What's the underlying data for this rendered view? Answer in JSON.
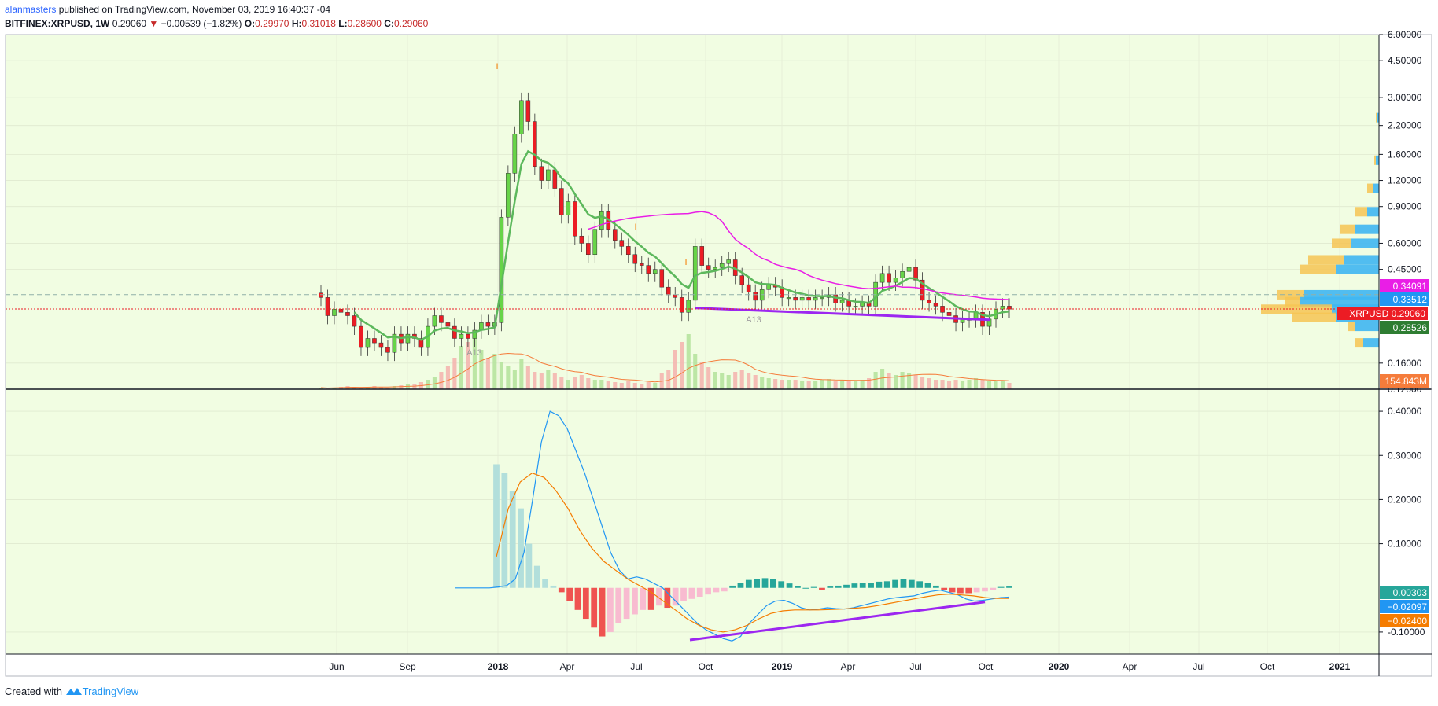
{
  "header": {
    "author": "alanmasters",
    "published": "published on TradingView.com, November 03, 2019 16:40:37 -04",
    "symbol": "BITFINEX:XRPUSD, 1W",
    "last": "0.29060",
    "change_arrow": "▼",
    "change": "−0.00539 (−1.82%)",
    "o_label": "O:",
    "o_value": "0.29970",
    "h_label": "H:",
    "h_value": "0.31018",
    "l_label": "L:",
    "l_value": "0.28600",
    "c_label": "C:",
    "c_value": "0.29060"
  },
  "footer": {
    "created_with": "Created with",
    "brand": "TradingView",
    "brand_icon": "tradingview-logo-icon"
  },
  "colors": {
    "background": "#f1fde2",
    "up": "#67d448",
    "down": "#ec1c24",
    "ema_green": "#5cb85c",
    "ma_magenta": "#e91ee6",
    "trendline": "#9c27f0",
    "macd": "#2196f3",
    "signal": "#f57c00",
    "hist_pos": "#26a69a",
    "hist_neg": "#ef5350"
  },
  "chart_data": [
    {
      "type": "candlestick",
      "title": "BITFINEX:XRPUSD, 1W",
      "scale": "log",
      "ylim": [
        0.12,
        6.0
      ],
      "y_ticks": [
        "6.00000",
        "4.50000",
        "3.00000",
        "2.20000",
        "1.60000",
        "1.20000",
        "0.90000",
        "0.60000",
        "0.45000",
        "0.16000",
        "0.12000"
      ],
      "x_ticks": [
        "Jun",
        "Sep",
        "2018",
        "Apr",
        "Jul",
        "Oct",
        "2019",
        "Apr",
        "Jul",
        "Oct",
        "2020",
        "Apr",
        "Jul",
        "Oct",
        "2021"
      ],
      "bold_x_ticks": [
        "2018",
        "2019",
        "2020",
        "2021"
      ],
      "price_labels": [
        {
          "text": "0.34091",
          "color": "#e91ee6"
        },
        {
          "text": "0.33512",
          "color": "#2196f3"
        },
        {
          "text": "XRPUSD  0.29060",
          "color": "#ec1c24"
        },
        {
          "text": "0.28526",
          "color": "#2e7d32"
        },
        {
          "text": "154.843M",
          "color": "#f57c3b"
        }
      ],
      "annotations": [
        "I",
        "I",
        "I",
        "A13",
        "A13"
      ],
      "close_series": [
        0.33,
        0.27,
        0.29,
        0.28,
        0.27,
        0.24,
        0.19,
        0.21,
        0.2,
        0.19,
        0.18,
        0.22,
        0.2,
        0.22,
        0.21,
        0.19,
        0.24,
        0.27,
        0.25,
        0.24,
        0.21,
        0.22,
        0.21,
        0.23,
        0.25,
        0.24,
        0.25,
        0.8,
        1.3,
        2.0,
        2.9,
        2.3,
        1.4,
        1.2,
        1.35,
        1.1,
        0.82,
        0.95,
        0.65,
        0.6,
        0.53,
        0.7,
        0.85,
        0.7,
        0.62,
        0.58,
        0.53,
        0.48,
        0.47,
        0.43,
        0.45,
        0.37,
        0.34,
        0.33,
        0.28,
        0.32,
        0.58,
        0.47,
        0.45,
        0.46,
        0.48,
        0.5,
        0.42,
        0.38,
        0.35,
        0.32,
        0.36,
        0.38,
        0.37,
        0.33,
        0.33,
        0.32,
        0.33,
        0.32,
        0.33,
        0.33,
        0.34,
        0.31,
        0.32,
        0.3,
        0.3,
        0.31,
        0.3,
        0.39,
        0.43,
        0.39,
        0.41,
        0.44,
        0.46,
        0.4,
        0.32,
        0.31,
        0.3,
        0.28,
        0.27,
        0.25,
        0.26,
        0.26,
        0.28,
        0.24,
        0.26,
        0.29,
        0.3,
        0.29
      ],
      "volume": [
        2,
        1,
        2,
        3,
        4,
        3,
        2,
        3,
        4,
        3,
        2,
        4,
        5,
        6,
        7,
        9,
        12,
        16,
        22,
        30,
        40,
        55,
        60,
        70,
        50,
        40,
        45,
        35,
        30,
        25,
        38,
        30,
        22,
        20,
        25,
        20,
        15,
        12,
        15,
        18,
        14,
        12,
        12,
        10,
        9,
        8,
        10,
        8,
        7,
        9,
        8,
        20,
        24,
        50,
        60,
        70,
        45,
        35,
        28,
        22,
        20,
        18,
        22,
        25,
        20,
        18,
        15,
        14,
        13,
        12,
        12,
        12,
        11,
        10,
        11,
        12,
        13,
        11,
        12,
        10,
        10,
        12,
        14,
        22,
        26,
        20,
        18,
        22,
        20,
        18,
        15,
        14,
        12,
        12,
        10,
        12,
        10,
        12,
        14,
        12,
        10,
        10,
        10,
        8
      ]
    },
    {
      "type": "macd",
      "y_ticks": [
        "0.40000",
        "0.30000",
        "0.20000",
        "0.10000",
        "-0.10000"
      ],
      "ylim": [
        -0.15,
        0.45
      ],
      "last_values": {
        "histogram": "0.00303",
        "macd": "−0.02097",
        "signal": "−0.02400"
      },
      "macd": [
        0,
        0,
        0,
        0,
        0,
        0.002,
        0.005,
        0.02,
        0.08,
        0.2,
        0.33,
        0.4,
        0.39,
        0.36,
        0.31,
        0.26,
        0.2,
        0.14,
        0.08,
        0.04,
        0.02,
        0.025,
        0.02,
        0.01,
        0,
        -0.02,
        -0.04,
        -0.06,
        -0.08,
        -0.095,
        -0.105,
        -0.115,
        -0.12,
        -0.11,
        -0.08,
        -0.06,
        -0.04,
        -0.03,
        -0.028,
        -0.035,
        -0.045,
        -0.05,
        -0.048,
        -0.045,
        -0.047,
        -0.048,
        -0.045,
        -0.04,
        -0.035,
        -0.03,
        -0.025,
        -0.022,
        -0.02,
        -0.018,
        -0.012,
        -0.008,
        -0.005,
        -0.01,
        -0.015,
        -0.025,
        -0.03,
        -0.028,
        -0.025,
        -0.022,
        -0.021
      ],
      "signal": [
        0.07,
        0.18,
        0.24,
        0.26,
        0.25,
        0.22,
        0.18,
        0.13,
        0.09,
        0.06,
        0.04,
        0.02,
        0.005,
        -0.01,
        -0.03,
        -0.05,
        -0.07,
        -0.085,
        -0.095,
        -0.1,
        -0.095,
        -0.085,
        -0.07,
        -0.058,
        -0.052,
        -0.05,
        -0.05,
        -0.05,
        -0.049,
        -0.048,
        -0.046,
        -0.044,
        -0.04,
        -0.035,
        -0.03,
        -0.025,
        -0.02,
        -0.016,
        -0.014,
        -0.016,
        -0.018,
        -0.022,
        -0.024,
        -0.024
      ],
      "histogram": [
        0.28,
        0.26,
        0.22,
        0.18,
        0.1,
        0.05,
        0.02,
        0.005,
        -0.01,
        -0.03,
        -0.05,
        -0.07,
        -0.09,
        -0.11,
        -0.1,
        -0.08,
        -0.07,
        -0.06,
        -0.05,
        -0.05,
        -0.04,
        -0.045,
        -0.04,
        -0.03,
        -0.025,
        -0.02,
        -0.015,
        -0.01,
        -0.008,
        0.005,
        0.012,
        0.018,
        0.02,
        0.022,
        0.02,
        0.015,
        0.01,
        0.004,
        0,
        0.002,
        -0.004,
        0.003,
        0.005,
        0.007,
        0.01,
        0.012,
        0.012,
        0.014,
        0.015,
        0.018,
        0.02,
        0.018,
        0.015,
        0.012,
        0.005,
        -0.005,
        -0.01,
        -0.012,
        -0.012,
        -0.01,
        -0.008,
        -0.004,
        0.002,
        0.003
      ]
    }
  ]
}
